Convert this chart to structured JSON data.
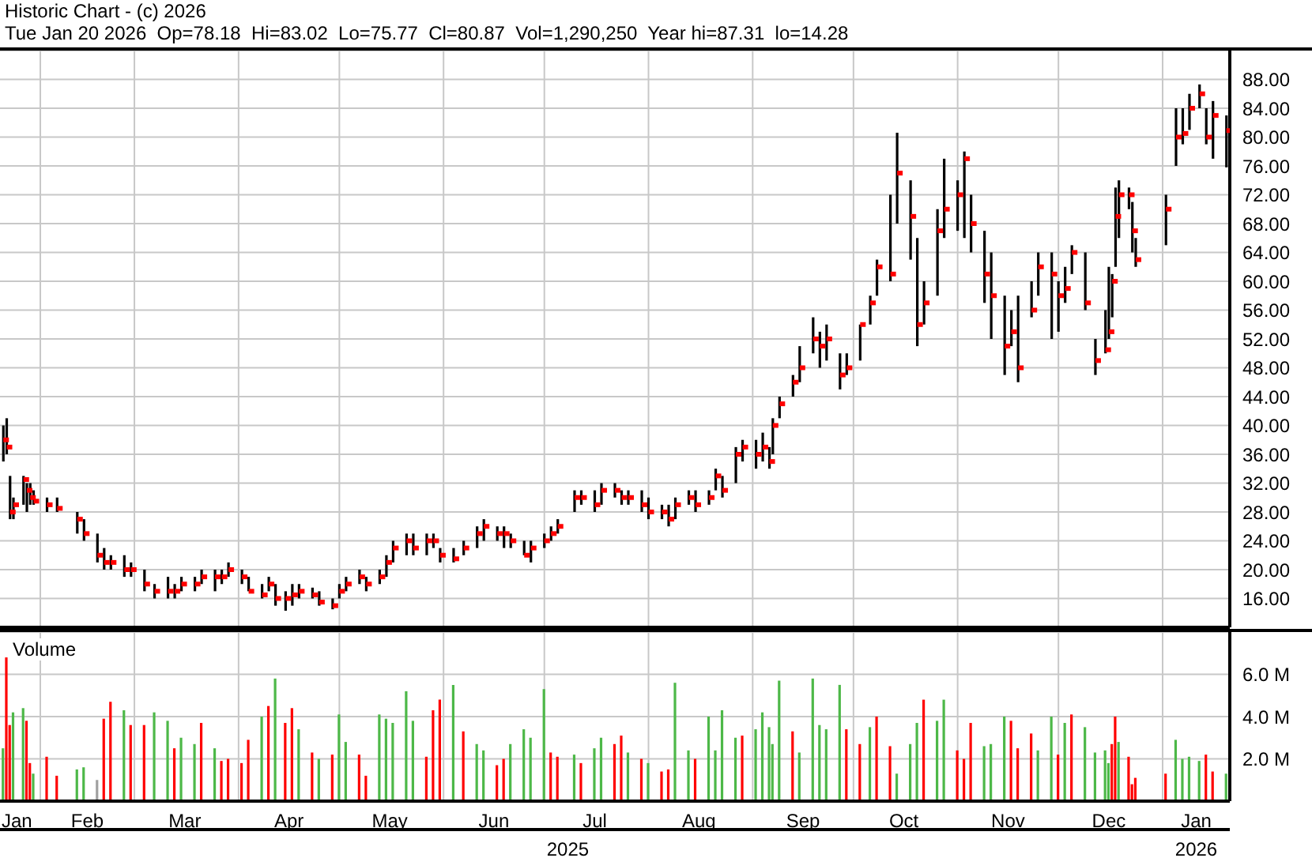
{
  "chart_data": [
    {
      "type": "scatter",
      "title": "Historic Chart - (c) 2026",
      "subtitle": "Tue Jan 20 2026  Op=78.18  Hi=83.02  Lo=75.77  Cl=80.87  Vol=1,290,250  Year hi=87.31  lo=14.28",
      "x": [
        "2025-01-21",
        "2025-01-22",
        "2025-01-23",
        "2025-01-24",
        "2025-01-27",
        "2025-01-28",
        "2025-01-29",
        "2025-01-30",
        "2025-02-03",
        "2025-02-06",
        "2025-02-12",
        "2025-02-14",
        "2025-02-18",
        "2025-02-20",
        "2025-02-22",
        "2025-02-26",
        "2025-02-28",
        "2025-03-04",
        "2025-03-07",
        "2025-03-11",
        "2025-03-13",
        "2025-03-15",
        "2025-03-19",
        "2025-03-21",
        "2025-03-25",
        "2025-03-27",
        "2025-03-29",
        "2025-04-02",
        "2025-04-04",
        "2025-04-08",
        "2025-04-10",
        "2025-04-12",
        "2025-04-15",
        "2025-04-17",
        "2025-04-19",
        "2025-04-23",
        "2025-04-25",
        "2025-04-29",
        "2025-05-01",
        "2025-05-03",
        "2025-05-07",
        "2025-05-09",
        "2025-05-13",
        "2025-05-15",
        "2025-05-17",
        "2025-05-21",
        "2025-05-23",
        "2025-05-27",
        "2025-05-29",
        "2025-05-31",
        "2025-06-04",
        "2025-06-07",
        "2025-06-11",
        "2025-06-13",
        "2025-06-17",
        "2025-06-19",
        "2025-06-21",
        "2025-06-25",
        "2025-06-27",
        "2025-07-01",
        "2025-07-03",
        "2025-07-05",
        "2025-07-10",
        "2025-07-12",
        "2025-07-16",
        "2025-07-18",
        "2025-07-22",
        "2025-07-24",
        "2025-07-26",
        "2025-07-30",
        "2025-08-01",
        "2025-08-05",
        "2025-08-07",
        "2025-08-09",
        "2025-08-13",
        "2025-08-15",
        "2025-08-19",
        "2025-08-21",
        "2025-08-23",
        "2025-08-27",
        "2025-08-29",
        "2025-09-02",
        "2025-09-04",
        "2025-09-06",
        "2025-09-07",
        "2025-09-09",
        "2025-09-13",
        "2025-09-15",
        "2025-09-19",
        "2025-09-21",
        "2025-09-23",
        "2025-09-27",
        "2025-09-29",
        "2025-10-03",
        "2025-10-06",
        "2025-10-08",
        "2025-10-12",
        "2025-10-14",
        "2025-10-18",
        "2025-10-20",
        "2025-10-22",
        "2025-10-26",
        "2025-10-28",
        "2025-11-01",
        "2025-11-03",
        "2025-11-05",
        "2025-11-09",
        "2025-11-11",
        "2025-11-15",
        "2025-11-17",
        "2025-11-19",
        "2025-11-23",
        "2025-11-25",
        "2025-11-29",
        "2025-12-01",
        "2025-12-03",
        "2025-12-05",
        "2025-12-09",
        "2025-12-12",
        "2025-12-15",
        "2025-12-16",
        "2025-12-17",
        "2025-12-18",
        "2025-12-19",
        "2025-12-22",
        "2025-12-23",
        "2025-12-24",
        "2026-01-02",
        "2026-01-05",
        "2026-01-07",
        "2026-01-09",
        "2026-01-12",
        "2026-01-14",
        "2026-01-16",
        "2026-01-20"
      ],
      "values": [
        38,
        37,
        28,
        29,
        32.5,
        31,
        30,
        29.5,
        29,
        28.5,
        27,
        25,
        22,
        21,
        21,
        20,
        20,
        18,
        17,
        17,
        17,
        18,
        18,
        19,
        19,
        19,
        20,
        19,
        17,
        16.5,
        18,
        16,
        16,
        16.5,
        17,
        16.5,
        15.5,
        15,
        17,
        18,
        19,
        18,
        19,
        21,
        23,
        24,
        23,
        24,
        24,
        22,
        21.5,
        23,
        25,
        26,
        25,
        25,
        24,
        22,
        23,
        24,
        25,
        26,
        30,
        30,
        29,
        31,
        31,
        30,
        30,
        29,
        28,
        28,
        27,
        29,
        30,
        29,
        30,
        33,
        31,
        36,
        37,
        36,
        37,
        35,
        40,
        43,
        46,
        48,
        52,
        51,
        52,
        47,
        48,
        54,
        57,
        62,
        61,
        75,
        69,
        54,
        57,
        67,
        70,
        72,
        77,
        68,
        61,
        58,
        51,
        53,
        48,
        56,
        62,
        61,
        58,
        59,
        64,
        57,
        49,
        50.5,
        53,
        60,
        69,
        72,
        72,
        67,
        63,
        70,
        80,
        80.5,
        84,
        86,
        80,
        83,
        80.9
      ],
      "errors": [
        [
          35,
          40
        ],
        [
          36,
          41
        ],
        [
          27,
          33
        ],
        [
          27,
          30
        ],
        [
          29,
          33
        ],
        [
          28,
          32
        ],
        [
          29,
          32
        ],
        [
          29,
          31
        ],
        [
          28,
          30
        ],
        [
          28,
          30
        ],
        [
          25,
          28
        ],
        [
          24,
          27
        ],
        [
          21,
          25
        ],
        [
          20,
          23
        ],
        [
          20,
          22
        ],
        [
          19,
          22
        ],
        [
          19,
          21
        ],
        [
          17,
          20
        ],
        [
          16,
          18
        ],
        [
          16,
          19
        ],
        [
          16,
          18
        ],
        [
          17,
          19
        ],
        [
          17,
          19
        ],
        [
          18,
          20
        ],
        [
          17,
          20
        ],
        [
          18,
          20
        ],
        [
          19,
          21
        ],
        [
          18,
          20
        ],
        [
          17,
          19
        ],
        [
          16,
          18
        ],
        [
          17,
          19
        ],
        [
          15,
          18
        ],
        [
          14.3,
          17
        ],
        [
          15,
          18
        ],
        [
          16,
          18
        ],
        [
          16,
          17.5
        ],
        [
          15,
          17
        ],
        [
          14.5,
          16
        ],
        [
          16,
          18
        ],
        [
          17,
          19
        ],
        [
          18,
          20
        ],
        [
          17,
          19
        ],
        [
          18,
          20
        ],
        [
          19,
          22
        ],
        [
          21,
          24
        ],
        [
          22,
          25
        ],
        [
          22,
          25
        ],
        [
          22,
          25
        ],
        [
          23,
          25
        ],
        [
          21,
          23
        ],
        [
          21,
          23
        ],
        [
          22,
          24
        ],
        [
          23,
          26
        ],
        [
          24,
          27
        ],
        [
          24,
          26
        ],
        [
          23,
          26
        ],
        [
          23,
          25
        ],
        [
          22,
          24
        ],
        [
          21,
          24
        ],
        [
          23,
          25
        ],
        [
          24,
          26
        ],
        [
          25,
          27
        ],
        [
          28,
          31
        ],
        [
          29,
          31
        ],
        [
          28,
          31
        ],
        [
          29,
          32
        ],
        [
          30,
          32
        ],
        [
          29,
          31
        ],
        [
          29,
          31
        ],
        [
          28,
          31
        ],
        [
          27,
          30
        ],
        [
          27,
          29
        ],
        [
          26,
          29
        ],
        [
          27,
          30
        ],
        [
          29,
          31
        ],
        [
          28,
          31
        ],
        [
          29,
          31
        ],
        [
          31,
          34
        ],
        [
          30,
          33
        ],
        [
          32,
          37
        ],
        [
          35,
          38
        ],
        [
          34,
          38
        ],
        [
          35,
          39
        ],
        [
          34,
          37
        ],
        [
          36,
          41
        ],
        [
          41,
          44
        ],
        [
          44,
          47
        ],
        [
          46,
          51
        ],
        [
          50,
          55
        ],
        [
          48,
          53
        ],
        [
          49,
          54
        ],
        [
          45,
          50
        ],
        [
          47,
          50
        ],
        [
          49,
          54
        ],
        [
          54,
          58
        ],
        [
          58,
          63
        ],
        [
          60,
          72
        ],
        [
          68,
          80.6
        ],
        [
          63,
          74
        ],
        [
          51,
          66
        ],
        [
          54,
          60
        ],
        [
          58,
          70
        ],
        [
          66,
          77
        ],
        [
          67,
          74
        ],
        [
          66,
          78
        ],
        [
          64,
          72
        ],
        [
          57,
          67
        ],
        [
          52,
          64
        ],
        [
          47,
          58
        ],
        [
          51,
          56
        ],
        [
          46,
          58
        ],
        [
          55,
          60
        ],
        [
          58,
          64
        ],
        [
          52,
          64
        ],
        [
          53,
          60
        ],
        [
          57,
          62
        ],
        [
          61,
          65
        ],
        [
          56,
          64
        ],
        [
          47,
          52
        ],
        [
          50,
          56
        ],
        [
          52,
          62
        ],
        [
          55,
          61
        ],
        [
          62,
          73
        ],
        [
          66,
          74
        ],
        [
          70,
          73
        ],
        [
          64,
          71
        ],
        [
          62,
          66
        ],
        [
          65,
          72
        ],
        [
          76,
          84
        ],
        [
          79,
          84
        ],
        [
          81,
          86
        ],
        [
          84,
          87.3
        ],
        [
          79,
          84
        ],
        [
          77,
          85
        ],
        [
          75.8,
          83.0
        ]
      ],
      "color": "#ff0000",
      "marker": "square",
      "xlim": [
        "2025-01-20",
        "2026-01-21"
      ],
      "xticks": [
        {
          "value": "2025-02-01",
          "label": null
        },
        {
          "value": "2025-03-01",
          "label": null
        },
        {
          "value": "2025-04-01",
          "label": null
        },
        {
          "value": "2025-05-01",
          "label": null
        },
        {
          "value": "2025-06-01",
          "label": null
        },
        {
          "value": "2025-07-01",
          "label": null
        },
        {
          "value": "2025-08-01",
          "label": null
        },
        {
          "value": "2025-09-01",
          "label": null
        },
        {
          "value": "2025-10-01",
          "label": null
        },
        {
          "value": "2025-11-01",
          "label": null
        },
        {
          "value": "2025-12-01",
          "label": null
        },
        {
          "value": "2026-01-01",
          "label": null
        }
      ],
      "ylim": [
        12,
        92
      ],
      "yticks": [
        {
          "value": 16,
          "label": "16.00"
        },
        {
          "value": 20,
          "label": "20.00"
        },
        {
          "value": 24,
          "label": "24.00"
        },
        {
          "value": 28,
          "label": "28.00"
        },
        {
          "value": 32,
          "label": "32.00"
        },
        {
          "value": 36,
          "label": "36.00"
        },
        {
          "value": 40,
          "label": "40.00"
        },
        {
          "value": 44,
          "label": "44.00"
        },
        {
          "value": 48,
          "label": "48.00"
        },
        {
          "value": 52,
          "label": "52.00"
        },
        {
          "value": 56,
          "label": "56.00"
        },
        {
          "value": 60,
          "label": "60.00"
        },
        {
          "value": 64,
          "label": "64.00"
        },
        {
          "value": 68,
          "label": "68.00"
        },
        {
          "value": 72,
          "label": "72.00"
        },
        {
          "value": 76,
          "label": "76.00"
        },
        {
          "value": 80,
          "label": "80.00"
        },
        {
          "value": 84,
          "label": "84.00"
        },
        {
          "value": 88,
          "label": "88.00"
        }
      ],
      "tick_labels": "y",
      "grid": true
    },
    {
      "type": "bar",
      "title": "Volume",
      "x": [
        "2025-01-21",
        "2025-01-22",
        "2025-01-23",
        "2025-01-24",
        "2025-01-27",
        "2025-01-28",
        "2025-01-29",
        "2025-01-30",
        "2025-02-03",
        "2025-02-06",
        "2025-02-12",
        "2025-02-14",
        "2025-02-18",
        "2025-02-20",
        "2025-02-22",
        "2025-02-26",
        "2025-02-28",
        "2025-03-04",
        "2025-03-07",
        "2025-03-11",
        "2025-03-13",
        "2025-03-15",
        "2025-03-19",
        "2025-03-21",
        "2025-03-25",
        "2025-03-27",
        "2025-03-29",
        "2025-04-02",
        "2025-04-04",
        "2025-04-08",
        "2025-04-10",
        "2025-04-12",
        "2025-04-15",
        "2025-04-17",
        "2025-04-19",
        "2025-04-23",
        "2025-04-25",
        "2025-04-29",
        "2025-05-01",
        "2025-05-03",
        "2025-05-07",
        "2025-05-09",
        "2025-05-13",
        "2025-05-15",
        "2025-05-17",
        "2025-05-21",
        "2025-05-23",
        "2025-05-27",
        "2025-05-29",
        "2025-05-31",
        "2025-06-04",
        "2025-06-07",
        "2025-06-11",
        "2025-06-13",
        "2025-06-17",
        "2025-06-19",
        "2025-06-21",
        "2025-06-25",
        "2025-06-27",
        "2025-07-01",
        "2025-07-03",
        "2025-07-05",
        "2025-07-10",
        "2025-07-12",
        "2025-07-16",
        "2025-07-18",
        "2025-07-22",
        "2025-07-24",
        "2025-07-26",
        "2025-07-30",
        "2025-08-01",
        "2025-08-05",
        "2025-08-07",
        "2025-08-09",
        "2025-08-13",
        "2025-08-15",
        "2025-08-19",
        "2025-08-21",
        "2025-08-23",
        "2025-08-27",
        "2025-08-29",
        "2025-09-02",
        "2025-09-04",
        "2025-09-06",
        "2025-09-07",
        "2025-09-09",
        "2025-09-13",
        "2025-09-15",
        "2025-09-19",
        "2025-09-21",
        "2025-09-23",
        "2025-09-27",
        "2025-09-29",
        "2025-10-03",
        "2025-10-06",
        "2025-10-08",
        "2025-10-12",
        "2025-10-14",
        "2025-10-18",
        "2025-10-20",
        "2025-10-22",
        "2025-10-26",
        "2025-10-28",
        "2025-11-01",
        "2025-11-03",
        "2025-11-05",
        "2025-11-09",
        "2025-11-11",
        "2025-11-15",
        "2025-11-17",
        "2025-11-19",
        "2025-11-23",
        "2025-11-25",
        "2025-11-29",
        "2025-12-01",
        "2025-12-03",
        "2025-12-05",
        "2025-12-09",
        "2025-12-12",
        "2025-12-15",
        "2025-12-16",
        "2025-12-17",
        "2025-12-18",
        "2025-12-19",
        "2025-12-22",
        "2025-12-23",
        "2025-12-24",
        "2026-01-02",
        "2026-01-05",
        "2026-01-07",
        "2026-01-09",
        "2026-01-12",
        "2026-01-14",
        "2026-01-16",
        "2026-01-20"
      ],
      "values": [
        2.5,
        6.8,
        3.6,
        4.2,
        4.4,
        3.8,
        1.8,
        1.3,
        2.1,
        1.2,
        1.5,
        1.6,
        1.0,
        3.9,
        4.7,
        4.3,
        3.6,
        3.6,
        4.2,
        3.8,
        2.5,
        3.0,
        2.7,
        3.7,
        2.5,
        1.9,
        2.0,
        1.8,
        2.9,
        4.0,
        4.5,
        5.8,
        3.7,
        4.4,
        3.4,
        2.3,
        2.0,
        2.2,
        4.1,
        2.8,
        2.2,
        1.2,
        4.1,
        3.9,
        3.7,
        5.2,
        3.8,
        2.1,
        4.3,
        4.8,
        5.5,
        3.3,
        2.7,
        2.4,
        1.7,
        2.0,
        2.7,
        3.4,
        3.0,
        5.3,
        2.3,
        2.1,
        2.2,
        1.8,
        2.5,
        3.0,
        2.7,
        3.1,
        2.3,
        2.0,
        1.8,
        1.4,
        1.5,
        5.6,
        2.4,
        2.0,
        4.0,
        2.4,
        4.3,
        3.0,
        3.1,
        3.4,
        4.2,
        3.5,
        2.7,
        5.7,
        3.3,
        2.3,
        5.8,
        3.6,
        3.4,
        5.5,
        3.4,
        2.7,
        3.5,
        4.0,
        2.6,
        1.3,
        2.7,
        3.7,
        4.8,
        3.8,
        4.8,
        2.4,
        2.0,
        3.7,
        2.6,
        2.7,
        4.0,
        3.8,
        2.5,
        3.2,
        2.4,
        4.0,
        2.2,
        3.7,
        4.1,
        3.5,
        2.3,
        2.4,
        1.8,
        2.7,
        4.0,
        2.8,
        2.1,
        0.8,
        1.1,
        1.3,
        2.9,
        2.0,
        2.1,
        1.9,
        2.2,
        1.4,
        1.3
      ],
      "colors": [
        "#4db848",
        "#ff0000",
        "#ff0000",
        "#4db848",
        "#4db848",
        "#ff0000",
        "#ff0000",
        "#4db848",
        "#ff0000",
        "#ff0000",
        "#4db848",
        "#4db848",
        "#a0a0a0",
        "#ff0000",
        "#ff0000",
        "#4db848",
        "#ff0000",
        "#ff0000",
        "#4db848",
        "#4db848",
        "#ff0000",
        "#4db848",
        "#4db848",
        "#ff0000",
        "#4db848",
        "#ff0000",
        "#ff0000",
        "#ff0000",
        "#ff0000",
        "#4db848",
        "#ff0000",
        "#4db848",
        "#ff0000",
        "#ff0000",
        "#4db848",
        "#ff0000",
        "#4db848",
        "#ff0000",
        "#4db848",
        "#4db848",
        "#ff0000",
        "#ff0000",
        "#4db848",
        "#4db848",
        "#4db848",
        "#4db848",
        "#4db848",
        "#ff0000",
        "#ff0000",
        "#ff0000",
        "#4db848",
        "#ff0000",
        "#4db848",
        "#4db848",
        "#ff0000",
        "#ff0000",
        "#4db848",
        "#4db848",
        "#4db848",
        "#4db848",
        "#ff0000",
        "#ff0000",
        "#4db848",
        "#ff0000",
        "#4db848",
        "#4db848",
        "#ff0000",
        "#ff0000",
        "#4db848",
        "#ff0000",
        "#4db848",
        "#ff0000",
        "#ff0000",
        "#4db848",
        "#4db848",
        "#ff0000",
        "#4db848",
        "#4db848",
        "#4db848",
        "#4db848",
        "#ff0000",
        "#4db848",
        "#4db848",
        "#4db848",
        "#4db848",
        "#4db848",
        "#ff0000",
        "#4db848",
        "#4db848",
        "#4db848",
        "#4db848",
        "#4db848",
        "#ff0000",
        "#ff0000",
        "#4db848",
        "#ff0000",
        "#ff0000",
        "#4db848",
        "#4db848",
        "#4db848",
        "#ff0000",
        "#4db848",
        "#4db848",
        "#ff0000",
        "#ff0000",
        "#ff0000",
        "#4db848",
        "#4db848",
        "#4db848",
        "#ff0000",
        "#ff0000",
        "#ff0000",
        "#4db848",
        "#4db848",
        "#ff0000",
        "#4db848",
        "#ff0000",
        "#4db848",
        "#4db848",
        "#4db848",
        "#4db848",
        "#ff0000",
        "#ff0000",
        "#4db848",
        "#ff0000",
        "#ff0000",
        "#ff0000",
        "#ff0000",
        "#4db848",
        "#4db848",
        "#4db848",
        "#4db848",
        "#ff0000",
        "#ff0000",
        "#4db848"
      ],
      "xlim": [
        "2025-01-20",
        "2026-01-21"
      ],
      "xticks": [
        {
          "value": "2025-01-25",
          "label": "Jan"
        },
        {
          "value": "2025-02-01",
          "label": null
        },
        {
          "value": "2025-02-15",
          "label": "Feb"
        },
        {
          "value": "2025-03-01",
          "label": null
        },
        {
          "value": "2025-03-16",
          "label": "Mar"
        },
        {
          "value": "2025-04-01",
          "label": null
        },
        {
          "value": "2025-04-16",
          "label": "Apr"
        },
        {
          "value": "2025-05-01",
          "label": null
        },
        {
          "value": "2025-05-16",
          "label": "May"
        },
        {
          "value": "2025-06-01",
          "label": null
        },
        {
          "value": "2025-06-16",
          "label": "Jun"
        },
        {
          "value": "2025-07-01",
          "label": null
        },
        {
          "value": "2025-07-16",
          "label": "Jul"
        },
        {
          "value": "2025-08-01",
          "label": null
        },
        {
          "value": "2025-08-16",
          "label": "Aug"
        },
        {
          "value": "2025-09-01",
          "label": null
        },
        {
          "value": "2025-09-16",
          "label": "Sep"
        },
        {
          "value": "2025-10-01",
          "label": null
        },
        {
          "value": "2025-10-16",
          "label": "Oct"
        },
        {
          "value": "2025-11-01",
          "label": null
        },
        {
          "value": "2025-11-16",
          "label": "Nov"
        },
        {
          "value": "2025-12-01",
          "label": null
        },
        {
          "value": "2025-12-16",
          "label": "Dec"
        },
        {
          "value": "2026-01-01",
          "label": null
        },
        {
          "value": "2026-01-11",
          "label": "Jan"
        }
      ],
      "x2lim": [
        "2025-01-20",
        "2026-01-21"
      ],
      "x2ticks": [
        {
          "value": "2025-07-08",
          "label": "2025"
        },
        {
          "value": "2026-01-11",
          "label": "2026"
        }
      ],
      "ylim": [
        0,
        8
      ],
      "yticks": [
        {
          "value": 2,
          "label": "2.0 M"
        },
        {
          "value": 4,
          "label": "4.0 M"
        },
        {
          "value": 6,
          "label": "6.0 M"
        }
      ],
      "grid": true
    }
  ]
}
